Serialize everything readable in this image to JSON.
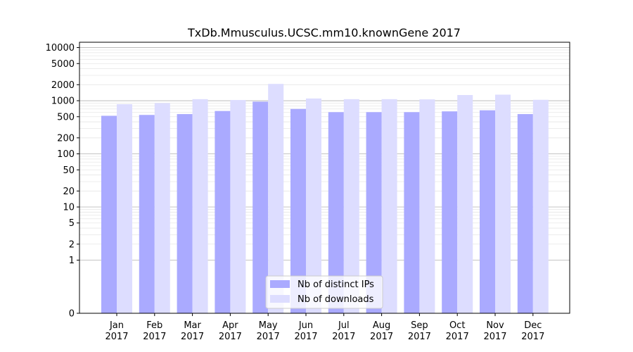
{
  "chart_data": {
    "type": "bar",
    "title": "TxDb.Mmusculus.UCSC.mm10.knownGene 2017",
    "xlabel": "",
    "ylabel": "",
    "y_scale": "symlog",
    "ylim": [
      0,
      10000
    ],
    "y_ticks": [
      0,
      1,
      2,
      5,
      10,
      20,
      50,
      100,
      200,
      500,
      1000,
      2000,
      5000,
      10000
    ],
    "grid": true,
    "legend_position": "bottom-center",
    "categories": [
      [
        "Jan",
        "2017"
      ],
      [
        "Feb",
        "2017"
      ],
      [
        "Mar",
        "2017"
      ],
      [
        "Apr",
        "2017"
      ],
      [
        "May",
        "2017"
      ],
      [
        "Jun",
        "2017"
      ],
      [
        "Jul",
        "2017"
      ],
      [
        "Aug",
        "2017"
      ],
      [
        "Sep",
        "2017"
      ],
      [
        "Oct",
        "2017"
      ],
      [
        "Nov",
        "2017"
      ],
      [
        "Dec",
        "2017"
      ]
    ],
    "series": [
      {
        "name": "Nb of distinct IPs",
        "color": "#aaaaff",
        "values": [
          520,
          540,
          560,
          640,
          960,
          700,
          610,
          610,
          610,
          630,
          660,
          560
        ]
      },
      {
        "name": "Nb of downloads",
        "color": "#ddddff",
        "values": [
          860,
          900,
          1070,
          1030,
          2070,
          1100,
          1070,
          1070,
          1060,
          1280,
          1300,
          1040
        ]
      }
    ]
  }
}
